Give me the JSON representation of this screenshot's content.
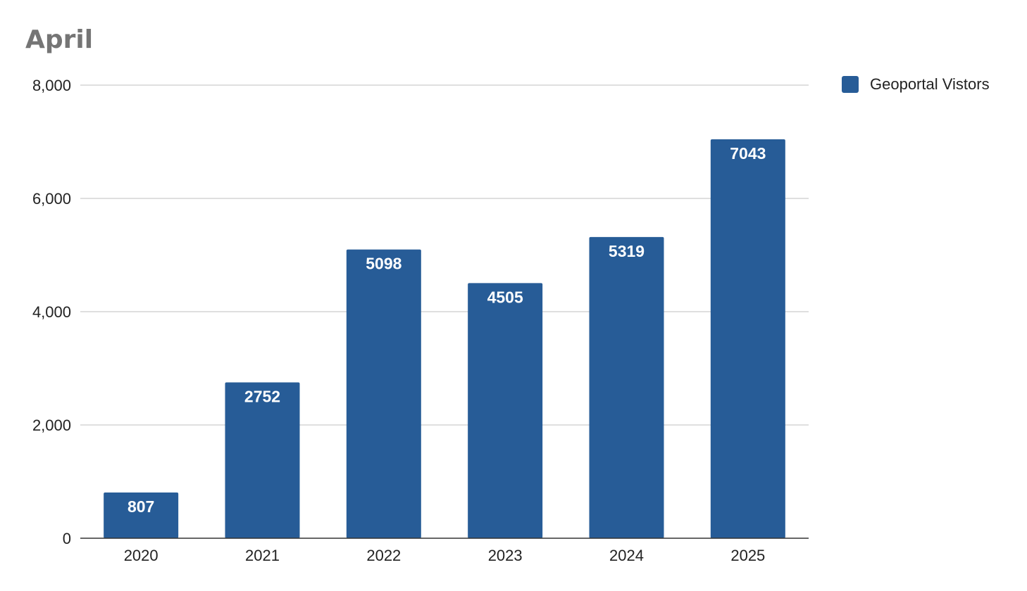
{
  "chart_data": {
    "type": "bar",
    "title": "April",
    "xlabel": "",
    "ylabel": "",
    "categories": [
      "2020",
      "2021",
      "2022",
      "2023",
      "2024",
      "2025"
    ],
    "series": [
      {
        "name": "Geoportal Vistors",
        "values": [
          807,
          2752,
          5098,
          4505,
          5319,
          7043
        ],
        "color": "#275c97"
      }
    ],
    "ylim": [
      0,
      8000
    ],
    "yticks": [
      0,
      2000,
      4000,
      6000,
      8000
    ],
    "ytick_labels": [
      "0",
      "2,000",
      "4,000",
      "6,000",
      "8,000"
    ],
    "data_labels": [
      "807",
      "2752",
      "5098",
      "4505",
      "5319",
      "7043"
    ],
    "grid": true,
    "legend_position": "top-right",
    "colors": {
      "bar": "#275c97",
      "grid": "#cccccc",
      "axis": "#333333",
      "title": "#757575"
    }
  }
}
